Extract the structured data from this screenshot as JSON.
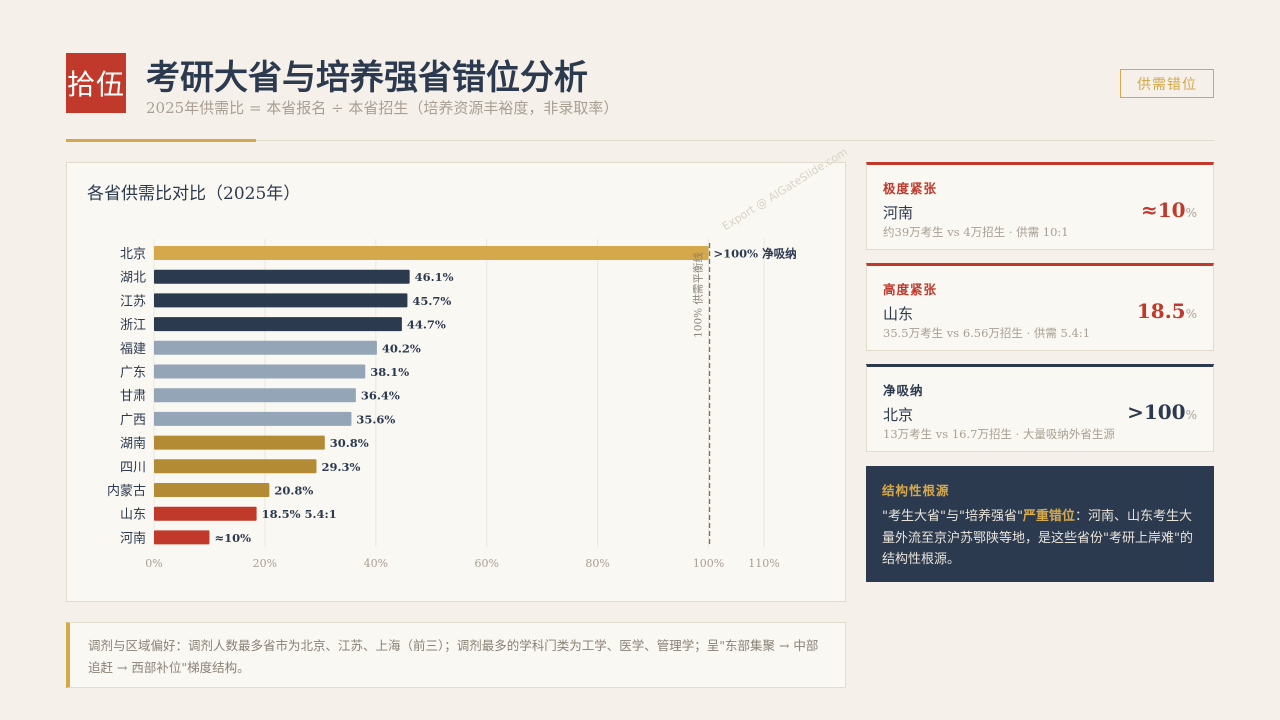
{
  "header": {
    "badge": "拾伍",
    "title": "考研大省与培养强省错位分析",
    "subtitle": "2025年供需比 = 本省报名 ÷ 本省招生（培养资源丰裕度，非录取率）",
    "tag": "供需错位"
  },
  "chart_data": {
    "type": "bar",
    "orientation": "horizontal",
    "title": "各省供需比对比（2025年）",
    "categories": [
      "北京",
      "湖北",
      "江苏",
      "浙江",
      "福建",
      "广东",
      "甘肃",
      "广西",
      "湖南",
      "四川",
      "内蒙古",
      "山东",
      "河南"
    ],
    "values": [
      100,
      46.1,
      45.7,
      44.7,
      40.2,
      38.1,
      36.4,
      35.6,
      30.8,
      29.3,
      20.8,
      18.5,
      10
    ],
    "value_labels": [
      ">100% 净吸纳",
      "46.1%",
      "45.7%",
      "44.7%",
      "40.2%",
      "38.1%",
      "36.4%",
      "35.6%",
      "30.8%",
      "29.3%",
      "20.8%",
      "18.5% 5.4:1",
      "≈10%"
    ],
    "colors": [
      "#d4a84b",
      "#2c3a4f",
      "#2c3a4f",
      "#2c3a4f",
      "#94a5b8",
      "#94a5b8",
      "#94a5b8",
      "#94a5b8",
      "#b38b35",
      "#b38b35",
      "#b38b35",
      "#c0392b",
      "#c0392b"
    ],
    "x_ticks": [
      0,
      20,
      40,
      60,
      80,
      100,
      110
    ],
    "x_tick_labels": [
      "0%",
      "20%",
      "40%",
      "60%",
      "80%",
      "100%",
      "110%"
    ],
    "xlim": [
      0,
      110
    ],
    "reference_line": {
      "value": 100,
      "label": "100% 供需平衡线"
    },
    "grid": "vertical"
  },
  "watermark": "Export @ AIGateSlide.com",
  "note": "调剂与区域偏好：调剂人数最多省市为北京、江苏、上海（前三）；调剂最多的学科门类为工学、医学、管理学；呈\"东部集聚 → 中部追赶 → 西部补位\"梯度结构。",
  "cards": [
    {
      "label": "极度紧张",
      "name": "河南",
      "detail": "约39万考生 vs 4万招生 · 供需 10:1",
      "value": "≈10",
      "unit": "%"
    },
    {
      "label": "高度紧张",
      "name": "山东",
      "detail": "35.5万考生 vs 6.56万招生 · 供需 5.4:1",
      "value": "18.5",
      "unit": "%"
    },
    {
      "label": "净吸纳",
      "name": "北京",
      "detail": "13万考生 vs 16.7万招生 · 大量吸纳外省生源",
      "value": ">100",
      "unit": "%"
    }
  ],
  "root": {
    "label": "结构性根源",
    "text_pre": "\"考生大省\"与\"培养强省\"",
    "text_highlight": "严重错位",
    "text_post": "：河南、山东考生大量外流至京沪苏鄂陕等地，是这些省份\"考研上岸难\"的结构性根源。"
  },
  "colors": {
    "accent_red": "#c0392b",
    "accent_gold": "#d4a84b",
    "navy": "#2c3a4f"
  }
}
